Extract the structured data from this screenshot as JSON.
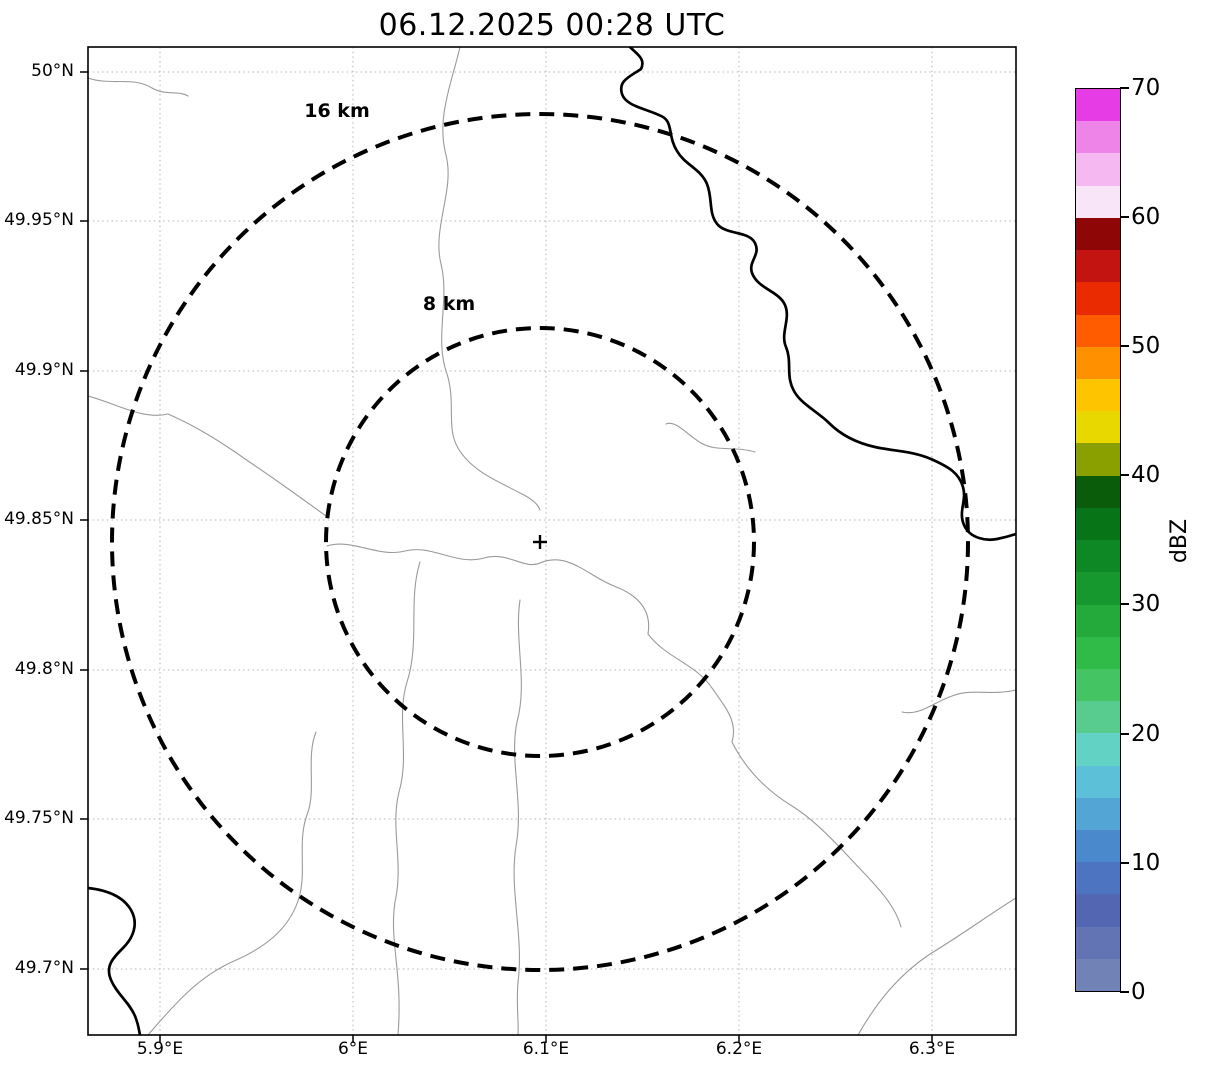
{
  "title": "06.12.2025 00:28 UTC",
  "axes": {
    "x_tick_labels": [
      "5.9°E",
      "6°E",
      "6.1°E",
      "6.2°E",
      "6.3°E"
    ],
    "y_tick_labels": [
      "50°N",
      "49.95°N",
      "49.9°N",
      "49.85°N",
      "49.8°N",
      "49.75°N",
      "49.7°N"
    ]
  },
  "rings": {
    "outer_label": "16 km",
    "inner_label": "8 km"
  },
  "colorbar": {
    "label": "dBZ",
    "tick_labels_top_to_bottom": [
      "70",
      "60",
      "50",
      "40",
      "30",
      "20",
      "10",
      "0"
    ],
    "colors_bottom_to_top": [
      "#7082b6",
      "#6274b4",
      "#5366b2",
      "#4c74c0",
      "#4a89cc",
      "#52a5d4",
      "#5cc0d8",
      "#62d2c4",
      "#57cc8e",
      "#44c462",
      "#30ba48",
      "#23aa3a",
      "#17982e",
      "#0e8824",
      "#077418",
      "#0a5c0a",
      "#8aa000",
      "#e8d800",
      "#ffc400",
      "#ff9000",
      "#ff5c00",
      "#ea2a00",
      "#c41412",
      "#8f0606",
      "#f8e6f8",
      "#f5b8f0",
      "#ee84e8",
      "#e53ce5"
    ]
  },
  "chart_data": {
    "type": "heatmap",
    "title": "06.12.2025 00:28 UTC",
    "xlabel": "",
    "ylabel": "",
    "x_tick_labels": [
      "5.9°E",
      "6°E",
      "6.1°E",
      "6.2°E",
      "6.3°E"
    ],
    "y_tick_labels": [
      "50°N",
      "49.95°N",
      "49.9°N",
      "49.85°N",
      "49.8°N",
      "49.75°N",
      "49.7°N"
    ],
    "xlim_deg_east": [
      5.863,
      6.345
    ],
    "ylim_deg_north": [
      49.678,
      50.008
    ],
    "grid": true,
    "values": [],
    "observation": "radar reflectivity display with no precipitation echoes visible",
    "colorbar": {
      "label": "dBZ",
      "min": 0,
      "max": 70,
      "ticks": [
        0,
        10,
        20,
        30,
        40,
        50,
        60,
        70
      ]
    },
    "annotations": [
      {
        "type": "range-ring",
        "label": "16 km",
        "radius_km": 16,
        "center_lon_east": 6.097,
        "center_lat_north": 49.843
      },
      {
        "type": "range-ring",
        "label": "8 km",
        "radius_km": 8,
        "center_lon_east": 6.097,
        "center_lat_north": 49.843
      },
      {
        "type": "radar-site-marker",
        "marker": "+",
        "lon_east": 6.097,
        "lat_north": 49.843
      }
    ],
    "map_features": [
      "thin gray administrative boundary lines",
      "thick black river line in north-east quadrant",
      "thick black river segment in south-west corner"
    ]
  }
}
